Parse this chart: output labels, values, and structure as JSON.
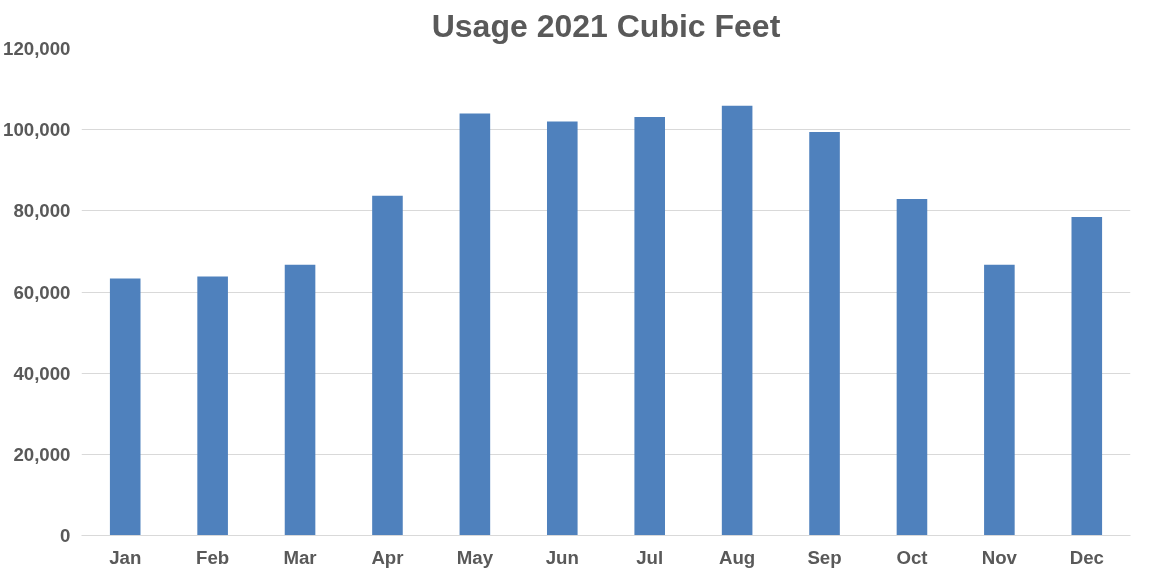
{
  "chart_data": {
    "type": "bar",
    "title": "Usage 2021 Cubic Feet",
    "categories": [
      "Jan",
      "Feb",
      "Mar",
      "Apr",
      "May",
      "Jun",
      "Jul",
      "Aug",
      "Sep",
      "Oct",
      "Nov",
      "Dec"
    ],
    "values": [
      63300,
      63800,
      66700,
      83700,
      104000,
      102000,
      103100,
      105900,
      99400,
      82900,
      66700,
      78500
    ],
    "color": "#4f81bd",
    "ylim": [
      0,
      120000
    ],
    "yticks": [
      {
        "value": 0,
        "label": "0"
      },
      {
        "value": 20000,
        "label": "20,000"
      },
      {
        "value": 40000,
        "label": "40,000"
      },
      {
        "value": 60000,
        "label": "60,000"
      },
      {
        "value": 80000,
        "label": "80,000"
      },
      {
        "value": 100000,
        "label": "100,000"
      },
      {
        "value": 120000,
        "label": "120,000"
      }
    ],
    "grid": "y"
  }
}
